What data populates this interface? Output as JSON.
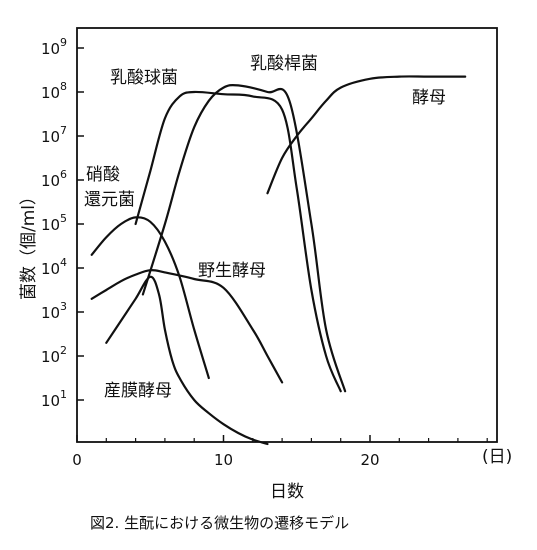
{
  "chart_data": {
    "type": "line",
    "title": "",
    "xlabel": "日数",
    "x_unit": "(日)",
    "ylabel": "菌数（個/ml）",
    "xlim": [
      0,
      28
    ],
    "ylim": [
      0,
      9.5
    ],
    "y_scale": "log",
    "grid": false,
    "x_ticks": [
      "0",
      "10",
      "20"
    ],
    "y_ticks": [
      {
        "base": "10",
        "exp": "1"
      },
      {
        "base": "10",
        "exp": "2"
      },
      {
        "base": "10",
        "exp": "3"
      },
      {
        "base": "10",
        "exp": "4"
      },
      {
        "base": "10",
        "exp": "5"
      },
      {
        "base": "10",
        "exp": "6"
      },
      {
        "base": "10",
        "exp": "7"
      },
      {
        "base": "10",
        "exp": "8"
      },
      {
        "base": "10",
        "exp": "9"
      }
    ],
    "series": [
      {
        "name": "硝酸還元菌",
        "x": [
          1,
          2,
          3,
          4,
          5,
          6,
          7,
          8,
          9
        ],
        "y": [
          4.3,
          4.7,
          5.0,
          5.15,
          5.05,
          4.6,
          3.8,
          2.6,
          1.5
        ]
      },
      {
        "name": "乳酸球菌",
        "x": [
          4,
          5,
          6,
          7,
          8,
          10,
          12,
          14,
          15,
          16,
          17,
          18
        ],
        "y": [
          5.0,
          6.2,
          7.4,
          7.9,
          8.0,
          7.95,
          7.9,
          7.6,
          5.8,
          3.5,
          2.0,
          1.2
        ]
      },
      {
        "name": "乳酸桿菌",
        "x": [
          4.5,
          6,
          7,
          8,
          9,
          10,
          11,
          13,
          14.5,
          16,
          17,
          18.3
        ],
        "y": [
          3.4,
          5.0,
          6.2,
          7.2,
          7.8,
          8.1,
          8.15,
          8.0,
          7.8,
          5.0,
          2.6,
          1.2
        ]
      },
      {
        "name": "酵母",
        "x": [
          13,
          14,
          15,
          16,
          17,
          18,
          20,
          22,
          24,
          26.5
        ],
        "y": [
          5.7,
          6.5,
          7.0,
          7.4,
          7.8,
          8.1,
          8.3,
          8.35,
          8.35,
          8.35
        ]
      },
      {
        "name": "野生酵母",
        "x": [
          1,
          2,
          3,
          4,
          5,
          6,
          8,
          10,
          12,
          13,
          14
        ],
        "y": [
          3.3,
          3.5,
          3.7,
          3.85,
          3.95,
          3.9,
          3.75,
          3.55,
          2.6,
          2.0,
          1.4
        ]
      },
      {
        "name": "産膜酵母",
        "x": [
          2,
          3,
          4,
          5,
          5.6,
          6,
          6.5,
          7,
          8,
          9,
          10,
          11,
          12,
          13
        ],
        "y": [
          2.3,
          2.8,
          3.3,
          3.8,
          3.4,
          2.6,
          1.9,
          1.5,
          1.0,
          0.7,
          0.45,
          0.25,
          0.1,
          0.0
        ]
      }
    ]
  },
  "labels": {
    "nyousan_kyukin": "乳酸球菌",
    "nyousan_kankin": "乳酸桿菌",
    "koubo": "酵母",
    "shousan_line1": "硝酸",
    "shousan_line2": "還元菌",
    "yasei_koubo": "野生酵母",
    "sanmaku_koubo": "産膜酵母"
  },
  "caption": "図2. 生酛における微生物の遷移モデル"
}
